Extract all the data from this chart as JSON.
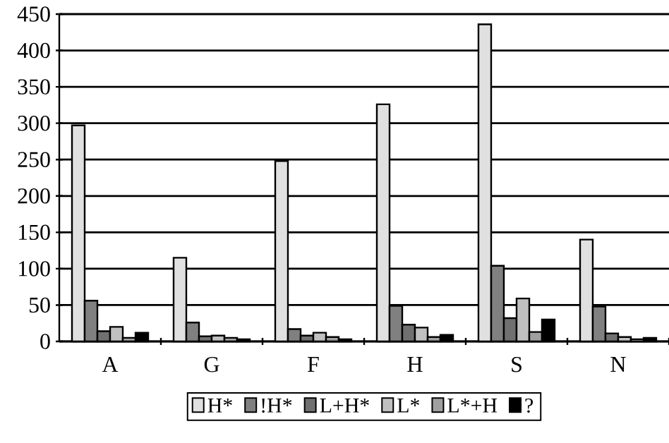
{
  "chart_data": {
    "type": "bar",
    "categories": [
      "A",
      "G",
      "F",
      "H",
      "S",
      "N"
    ],
    "series": [
      {
        "name": "H*",
        "color": "#e0e0e0",
        "values": [
          297,
          115,
          248,
          326,
          436,
          140
        ]
      },
      {
        "name": "!H*",
        "color": "#808080",
        "values": [
          56,
          26,
          17,
          49,
          104,
          48
        ]
      },
      {
        "name": "L+H*",
        "color": "#707070",
        "values": [
          14,
          7,
          8,
          23,
          32,
          11
        ]
      },
      {
        "name": "L*",
        "color": "#c0c0c0",
        "values": [
          20,
          8,
          12,
          19,
          59,
          6
        ]
      },
      {
        "name": "L*+H",
        "color": "#a0a0a0",
        "values": [
          5,
          5,
          6,
          6,
          13,
          3
        ]
      },
      {
        "name": "?",
        "color": "#000000",
        "values": [
          12,
          3,
          3,
          9,
          30,
          5
        ]
      }
    ],
    "ylim": [
      0,
      450
    ],
    "yticks": [
      0,
      50,
      100,
      150,
      200,
      250,
      300,
      350,
      400,
      450
    ],
    "grid": "y",
    "legend": "bottom"
  }
}
